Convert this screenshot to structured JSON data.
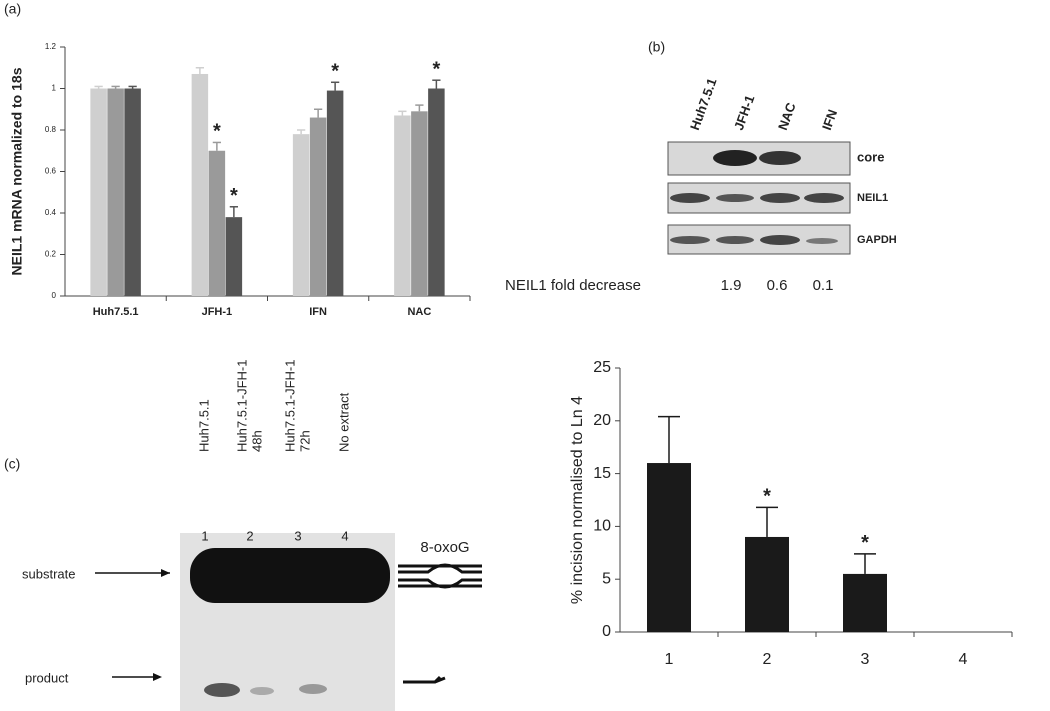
{
  "panels": [
    "(a)",
    "(b)",
    "(c)"
  ],
  "chart_data": [
    {
      "type": "bar",
      "y_label": "NEIL1 mRNA normalized to 18s",
      "categories": [
        "Huh7.5.1",
        "JFH-1",
        "IFN",
        "NAC"
      ],
      "series": [
        {
          "color": "#cfcfcf",
          "values": [
            1,
            1.07,
            0.78,
            0.87
          ],
          "errors": [
            0.01,
            0.03,
            0.02,
            0.02
          ],
          "annotations": [
            null,
            null,
            null,
            null
          ]
        },
        {
          "color": "#9a9a9a",
          "values": [
            1,
            0.7,
            0.86,
            0.89
          ],
          "errors": [
            0.01,
            0.04,
            0.04,
            0.03
          ],
          "annotations": [
            null,
            "*",
            null,
            null
          ]
        },
        {
          "color": "#555555",
          "values": [
            1,
            0.38,
            0.99,
            1
          ],
          "errors": [
            0.01,
            0.05,
            0.04,
            0.04
          ],
          "annotations": [
            null,
            "*",
            "*",
            "*"
          ]
        }
      ],
      "ylim": [
        0,
        1.2
      ],
      "yticks": [
        0,
        0.2,
        0.4,
        0.6,
        0.8,
        1,
        1.2
      ]
    },
    {
      "type": "bar",
      "y_label": "% incision normalised to Ln 4",
      "categories": [
        "1",
        "2",
        "3",
        "4"
      ],
      "series": [
        {
          "color": "#1a1a1a",
          "values": [
            16,
            9,
            5.5,
            0
          ],
          "errors": [
            4.4,
            2.8,
            1.9,
            0
          ],
          "annotations": [
            null,
            "*",
            "*",
            null
          ]
        }
      ],
      "ylim": [
        0,
        25
      ],
      "yticks": [
        0,
        5,
        10,
        15,
        20,
        25
      ]
    }
  ],
  "blot": {
    "lanes": [
      "Huh7.5.1",
      "JFH-1",
      "NAC",
      "IFN"
    ],
    "rows": [
      "core",
      "NEIL1",
      "GAPDH"
    ],
    "fold_label": "NEIL1 fold decrease",
    "fold_values": [
      1.9,
      0.6,
      0.1
    ]
  },
  "gel": {
    "lanes": [
      [
        "Huh7.5.1"
      ],
      [
        "Huh7.5.1-JFH-1",
        "48h"
      ],
      [
        "Huh7.5.1-JFH-1",
        "72h"
      ],
      [
        "No extract"
      ]
    ],
    "lane_numbers": [
      "1",
      "2",
      "3",
      "4"
    ],
    "substrate": "substrate",
    "product": "product",
    "lesion": "8-oxoG"
  }
}
